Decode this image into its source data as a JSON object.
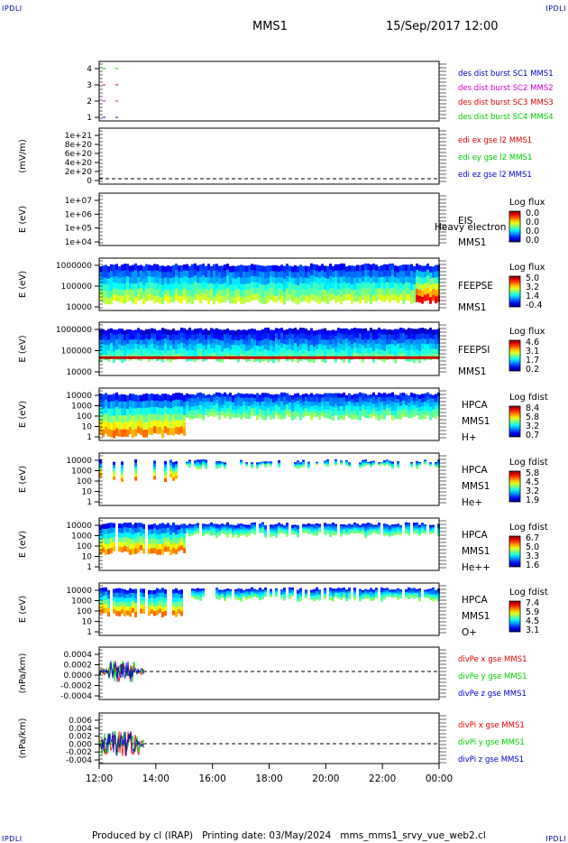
{
  "corners": {
    "tl": "IPDLI",
    "tr": "IPDLI",
    "bl": "IPDLI",
    "br": "IPDLI"
  },
  "header": {
    "spacecraft": "MMS1",
    "date": "15/Sep/2017 12:00"
  },
  "footer": {
    "text": "Produced by cl (IRAP)   Printing date: 03/May/2024   mms_mms1_srvy_vue_web2.cl"
  },
  "colors": {
    "red": "#dd0000",
    "green": "#00cc00",
    "blue": "#0000cc",
    "magenta": "#cc00cc"
  },
  "chart_data": {
    "type": "multi-panel-timeseries",
    "x_ticks": [
      "12:00",
      "14:00",
      "16:00",
      "18:00",
      "20:00",
      "22:00",
      "00:00"
    ],
    "panels": [
      {
        "id": "burst",
        "y_ticks": [
          "4",
          "3",
          "2",
          "1"
        ],
        "legend": [
          {
            "text": "des dist burst SC1 MMS1",
            "color": "#0000cc"
          },
          {
            "text": "des dist burst SC2 MMS2",
            "color": "#cc00cc"
          },
          {
            "text": "des dist burst SC3 MMS3",
            "color": "#dd0000"
          },
          {
            "text": "des dist burst SC4 MMS4",
            "color": "#00cc00"
          }
        ]
      },
      {
        "id": "edi",
        "ylabel": "(mV/m)",
        "y_ticks": [
          "1e+21",
          "8e+20",
          "6e+20",
          "4e+20",
          "2e+20",
          "0"
        ],
        "legend": [
          {
            "text": "edi ex gse l2 MMS1",
            "color": "#dd0000"
          },
          {
            "text": "edi ey gse l2 MMS1",
            "color": "#00cc00"
          },
          {
            "text": "edi ez gse l2 MMS1",
            "color": "#0000cc"
          }
        ]
      },
      {
        "id": "eis",
        "ylabel": "E (eV)",
        "y_ticks": [
          "1e+07",
          "1e+06",
          "1e+05",
          "1e+04"
        ],
        "right_labels": [
          "EIS",
          "MMS1"
        ],
        "overlay_text": "Heavy electron to",
        "colorbar": {
          "title": "Log flux",
          "ticks": [
            "0.0",
            "0.0",
            "0.0",
            "0.0"
          ]
        }
      },
      {
        "id": "feepse",
        "ylabel": "E (eV)",
        "y_ticks": [
          "1000000",
          "100000",
          "10000"
        ],
        "right_labels": [
          "FEEPSE",
          "MMS1"
        ],
        "colorbar": {
          "title": "Log flux",
          "ticks": [
            "5.0",
            "3.2",
            "1.4",
            "-0.4"
          ]
        }
      },
      {
        "id": "feepsi",
        "ylabel": "E (eV)",
        "y_ticks": [
          "1000000",
          "100000",
          "10000"
        ],
        "right_labels": [
          "FEEPSI",
          "MMS1"
        ],
        "colorbar": {
          "title": "Log flux",
          "ticks": [
            "4.6",
            "3.1",
            "1.7",
            "0.2"
          ]
        }
      },
      {
        "id": "hpca_h",
        "ylabel": "E (eV)",
        "y_ticks": [
          "10000",
          "1000",
          "100",
          "10",
          "1"
        ],
        "right_labels": [
          "HPCA",
          "MMS1",
          "H+"
        ],
        "colorbar": {
          "title": "Log fdist",
          "ticks": [
            "8.4",
            "5.8",
            "3.2",
            "0.7"
          ]
        }
      },
      {
        "id": "hpca_he",
        "ylabel": "E (eV)",
        "y_ticks": [
          "10000",
          "1000",
          "100",
          "10",
          "1"
        ],
        "right_labels": [
          "HPCA",
          "MMS1",
          "He+"
        ],
        "colorbar": {
          "title": "Log fdist",
          "ticks": [
            "5.8",
            "4.5",
            "3.2",
            "1.9"
          ]
        }
      },
      {
        "id": "hpca_hepp",
        "ylabel": "E (eV)",
        "y_ticks": [
          "10000",
          "1000",
          "100",
          "10",
          "1"
        ],
        "right_labels": [
          "HPCA",
          "MMS1",
          "He++"
        ],
        "colorbar": {
          "title": "Log fdist",
          "ticks": [
            "6.7",
            "5.0",
            "3.3",
            "1.6"
          ]
        }
      },
      {
        "id": "hpca_o",
        "ylabel": "E (eV)",
        "y_ticks": [
          "10000",
          "1000",
          "100",
          "10",
          "1"
        ],
        "right_labels": [
          "HPCA",
          "MMS1",
          "O+"
        ],
        "colorbar": {
          "title": "Log fdist",
          "ticks": [
            "7.4",
            "5.9",
            "4.5",
            "3.1"
          ]
        }
      },
      {
        "id": "divpe",
        "ylabel": "(nPa/km)",
        "y_ticks": [
          "0.0004",
          "0.0002",
          "0.0000",
          "-0.0002",
          "-0.0004"
        ],
        "legend": [
          {
            "text": "divPe x gse MMS1",
            "color": "#dd0000"
          },
          {
            "text": "divPe y gse MMS1",
            "color": "#00cc00"
          },
          {
            "text": "divPe z gse MMS1",
            "color": "#0000cc"
          }
        ]
      },
      {
        "id": "divpi",
        "ylabel": "(nPa/km)",
        "y_ticks": [
          "0.006",
          "0.004",
          "0.002",
          "0.000",
          "-0.002",
          "-0.004"
        ],
        "legend": [
          {
            "text": "divPi x gse MMS1",
            "color": "#dd0000"
          },
          {
            "text": "divPi y gse MMS1",
            "color": "#00cc00"
          },
          {
            "text": "divPi z gse MMS1",
            "color": "#0000cc"
          }
        ]
      }
    ]
  }
}
